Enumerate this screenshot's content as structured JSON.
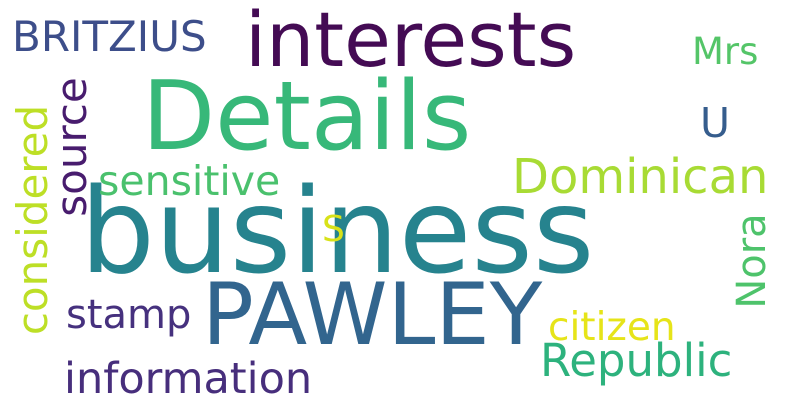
{
  "background": "#ffffff",
  "words": [
    {
      "key": "business",
      "text": "business",
      "color": "#26838e"
    },
    {
      "key": "details",
      "text": "Details",
      "color": "#37b879"
    },
    {
      "key": "interests",
      "text": "interests",
      "color": "#440b54"
    },
    {
      "key": "pawley",
      "text": "PAWLEY",
      "color": "#32658e"
    },
    {
      "key": "britzius",
      "text": "BRITZIUS",
      "color": "#3d4e8a"
    },
    {
      "key": "mrs",
      "text": "Mrs",
      "color": "#54c568"
    },
    {
      "key": "u",
      "text": "U",
      "color": "#365d8d"
    },
    {
      "key": "source",
      "text": "source",
      "color": "#481c6e"
    },
    {
      "key": "considered",
      "text": "considered",
      "color": "#bddf26"
    },
    {
      "key": "sensitive",
      "text": "sensitive",
      "color": "#4ac16d"
    },
    {
      "key": "dominican",
      "text": "Dominican",
      "color": "#a8db34"
    },
    {
      "key": "s",
      "text": "S",
      "color": "#d8e219"
    },
    {
      "key": "nora",
      "text": "Nora",
      "color": "#4ec36b"
    },
    {
      "key": "stamp",
      "text": "stamp",
      "color": "#46317e"
    },
    {
      "key": "citizen",
      "text": "citizen",
      "color": "#e6e419"
    },
    {
      "key": "republic",
      "text": "Republic",
      "color": "#2db27d"
    },
    {
      "key": "information",
      "text": "information",
      "color": "#472e7c"
    }
  ]
}
